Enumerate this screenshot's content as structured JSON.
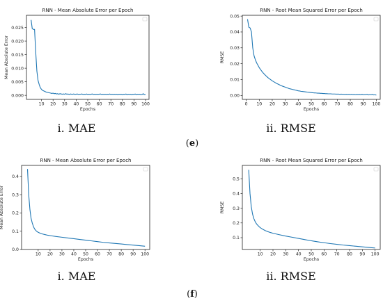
{
  "series_color": "#1f77b4",
  "charts": [
    {
      "type": "line",
      "title": "RNN -  Mean Absolute Error per Epoch",
      "xlabel": "Epochs",
      "ylabel": "Mean Absolute Error",
      "xlim": [
        -3,
        103
      ],
      "ylim": [
        -0.0015,
        0.0295
      ],
      "xticks": [
        10,
        20,
        30,
        40,
        50,
        60,
        70,
        80,
        90,
        100
      ],
      "yticks": [
        0.0,
        0.005,
        0.01,
        0.015,
        0.02,
        0.025
      ],
      "ytick_labels": [
        "0.000",
        "0.005",
        "0.010",
        "0.015",
        "0.020",
        "0.025"
      ],
      "legend": "top-right (empty)",
      "x": [
        1,
        2,
        3,
        4,
        5,
        6,
        7,
        8,
        9,
        10,
        11,
        12,
        13,
        14,
        15,
        16,
        17,
        18,
        19,
        20,
        21,
        22,
        23,
        24,
        25,
        26,
        27,
        28,
        29,
        30,
        31,
        32,
        33,
        34,
        35,
        36,
        37,
        38,
        39,
        40,
        41,
        42,
        43,
        44,
        45,
        46,
        47,
        48,
        49,
        50,
        51,
        52,
        53,
        54,
        55,
        56,
        57,
        58,
        59,
        60,
        61,
        62,
        63,
        64,
        65,
        66,
        67,
        68,
        69,
        70,
        71,
        72,
        73,
        74,
        75,
        76,
        77,
        78,
        79,
        80,
        81,
        82,
        83,
        84,
        85,
        86,
        87,
        88,
        89,
        90,
        91,
        92,
        93,
        94,
        95,
        96,
        97,
        98,
        99,
        100
      ],
      "y": [
        0.0278,
        0.0246,
        0.0243,
        0.0243,
        0.016,
        0.009,
        0.0055,
        0.004,
        0.0028,
        0.0022,
        0.0018,
        0.0016,
        0.0014,
        0.0012,
        0.0011,
        0.001,
        0.0009,
        0.0008,
        0.0007,
        0.0008,
        0.0006,
        0.0007,
        0.0005,
        0.0006,
        0.0004,
        0.0006,
        0.0005,
        0.0004,
        0.0005,
        0.0004,
        0.0006,
        0.0004,
        0.0005,
        0.0003,
        0.0005,
        0.0004,
        0.0004,
        0.0005,
        0.0003,
        0.0004,
        0.0005,
        0.0003,
        0.0004,
        0.0004,
        0.0005,
        0.0003,
        0.0004,
        0.0003,
        0.0005,
        0.0003,
        0.0004,
        0.0003,
        0.0004,
        0.0005,
        0.0003,
        0.0004,
        0.0003,
        0.0004,
        0.0003,
        0.0004,
        0.0005,
        0.0003,
        0.0004,
        0.0003,
        0.0004,
        0.0003,
        0.0004,
        0.0003,
        0.0005,
        0.0003,
        0.0004,
        0.0003,
        0.0004,
        0.0003,
        0.0004,
        0.0002,
        0.0004,
        0.0003,
        0.0004,
        0.0002,
        0.0004,
        0.0003,
        0.0005,
        0.0002,
        0.0004,
        0.0003,
        0.0004,
        0.0002,
        0.0004,
        0.0003,
        0.0005,
        0.0002,
        0.0004,
        0.0003,
        0.0004,
        0.0002,
        0.0003,
        0.0006,
        0.0002,
        0.0003
      ]
    },
    {
      "type": "line",
      "title": "RNN - Root Mean Squared Error per Epoch",
      "xlabel": "Epochs",
      "ylabel": "RMSE",
      "xlim": [
        -3,
        103
      ],
      "ylim": [
        -0.0025,
        0.0505
      ],
      "xticks": [
        0,
        10,
        20,
        30,
        40,
        50,
        60,
        70,
        80,
        90,
        100
      ],
      "yticks": [
        0.0,
        0.01,
        0.02,
        0.03,
        0.04,
        0.05
      ],
      "ytick_labels": [
        "0.00",
        "0.01",
        "0.02",
        "0.03",
        "0.04",
        "0.05"
      ],
      "legend": "top-right (empty)",
      "x": [
        1,
        2,
        3,
        4,
        5,
        6,
        7,
        8,
        9,
        10,
        11,
        12,
        13,
        14,
        15,
        16,
        17,
        18,
        19,
        20,
        21,
        22,
        23,
        24,
        25,
        26,
        27,
        28,
        29,
        30,
        31,
        32,
        33,
        34,
        35,
        36,
        37,
        38,
        39,
        40,
        41,
        42,
        43,
        44,
        45,
        46,
        47,
        48,
        49,
        50,
        51,
        52,
        53,
        54,
        55,
        56,
        57,
        58,
        59,
        60,
        61,
        62,
        63,
        64,
        65,
        66,
        67,
        68,
        69,
        70,
        71,
        72,
        73,
        74,
        75,
        76,
        77,
        78,
        79,
        80,
        81,
        82,
        83,
        84,
        85,
        86,
        87,
        88,
        89,
        90,
        91,
        92,
        93,
        94,
        95,
        96,
        97,
        98,
        99,
        100
      ],
      "y": [
        0.048,
        0.043,
        0.0425,
        0.04,
        0.03,
        0.025,
        0.0225,
        0.0205,
        0.019,
        0.0175,
        0.0163,
        0.0152,
        0.0142,
        0.0133,
        0.0125,
        0.0117,
        0.011,
        0.0104,
        0.0098,
        0.0092,
        0.0087,
        0.0082,
        0.0077,
        0.0073,
        0.0069,
        0.0065,
        0.0061,
        0.0058,
        0.0055,
        0.0052,
        0.0049,
        0.0046,
        0.0043,
        0.0041,
        0.0039,
        0.0037,
        0.0035,
        0.0033,
        0.0031,
        0.0029,
        0.0028,
        0.0026,
        0.0025,
        0.0024,
        0.0023,
        0.0022,
        0.0021,
        0.002,
        0.0019,
        0.0018,
        0.0017,
        0.0016,
        0.0016,
        0.0015,
        0.0014,
        0.0014,
        0.0013,
        0.0013,
        0.0012,
        0.0012,
        0.0011,
        0.0011,
        0.001,
        0.001,
        0.001,
        0.0009,
        0.0009,
        0.0009,
        0.0008,
        0.0008,
        0.0008,
        0.0007,
        0.0008,
        0.0007,
        0.0007,
        0.0006,
        0.0007,
        0.0006,
        0.0007,
        0.0005,
        0.0007,
        0.0005,
        0.0006,
        0.0004,
        0.0006,
        0.0005,
        0.0006,
        0.0004,
        0.0007,
        0.0004,
        0.0005,
        0.0005,
        0.0007,
        0.0003,
        0.0005,
        0.0004,
        0.0006,
        0.0003,
        0.0004,
        0.0002
      ]
    },
    {
      "type": "line",
      "title": "RNN -  Mean Absolute Error per Epoch",
      "xlabel": "Epochs",
      "ylabel": "Mean Absolute Error",
      "xlim": [
        -4,
        104
      ],
      "ylim": [
        0,
        0.46
      ],
      "xticks": [
        10,
        20,
        30,
        40,
        50,
        60,
        70,
        80,
        90,
        100
      ],
      "yticks": [
        0.0,
        0.1,
        0.2,
        0.3,
        0.4
      ],
      "ytick_labels": [
        "0.0",
        "0.1",
        "0.2",
        "0.3",
        "0.4"
      ],
      "legend": "top-right (empty)",
      "x": [
        1,
        2,
        3,
        4,
        5,
        6,
        7,
        8,
        9,
        10,
        12,
        14,
        16,
        18,
        20,
        25,
        30,
        35,
        40,
        45,
        50,
        55,
        60,
        65,
        70,
        75,
        80,
        85,
        90,
        95,
        100
      ],
      "y": [
        0.44,
        0.3,
        0.22,
        0.17,
        0.145,
        0.125,
        0.112,
        0.104,
        0.098,
        0.094,
        0.088,
        0.084,
        0.081,
        0.078,
        0.076,
        0.071,
        0.067,
        0.063,
        0.059,
        0.055,
        0.051,
        0.047,
        0.043,
        0.039,
        0.036,
        0.033,
        0.03,
        0.027,
        0.024,
        0.021,
        0.018
      ]
    },
    {
      "type": "line",
      "title": "RNN - Root Mean Squared Error per Epoch",
      "xlabel": "Epochs",
      "ylabel": "RMSE",
      "xlim": [
        -4,
        104
      ],
      "ylim": [
        0.02,
        0.59
      ],
      "xticks": [
        10,
        20,
        30,
        40,
        50,
        60,
        70,
        80,
        90,
        100
      ],
      "yticks": [
        0.1,
        0.2,
        0.3,
        0.4,
        0.5
      ],
      "ytick_labels": [
        "0.1",
        "0.2",
        "0.3",
        "0.4",
        "0.5"
      ],
      "legend": "top-right (empty)",
      "x": [
        1,
        2,
        3,
        4,
        5,
        6,
        7,
        8,
        9,
        10,
        12,
        14,
        16,
        18,
        20,
        25,
        30,
        35,
        40,
        45,
        50,
        55,
        60,
        65,
        70,
        75,
        80,
        85,
        90,
        95,
        100
      ],
      "y": [
        0.56,
        0.4,
        0.31,
        0.26,
        0.23,
        0.21,
        0.195,
        0.185,
        0.176,
        0.168,
        0.157,
        0.148,
        0.141,
        0.135,
        0.13,
        0.12,
        0.111,
        0.103,
        0.095,
        0.087,
        0.079,
        0.072,
        0.066,
        0.06,
        0.055,
        0.05,
        0.046,
        0.042,
        0.038,
        0.034,
        0.03
      ]
    }
  ],
  "captions": {
    "e_left": "i. MAE",
    "e_right": "ii. RMSE",
    "e_label_open": "(",
    "e_label_letter": "e",
    "e_label_close": ")",
    "f_left": "i. MAE",
    "f_right": "ii. RMSE",
    "f_label_open": "(",
    "f_label_letter": "f",
    "f_label_close": ")"
  }
}
